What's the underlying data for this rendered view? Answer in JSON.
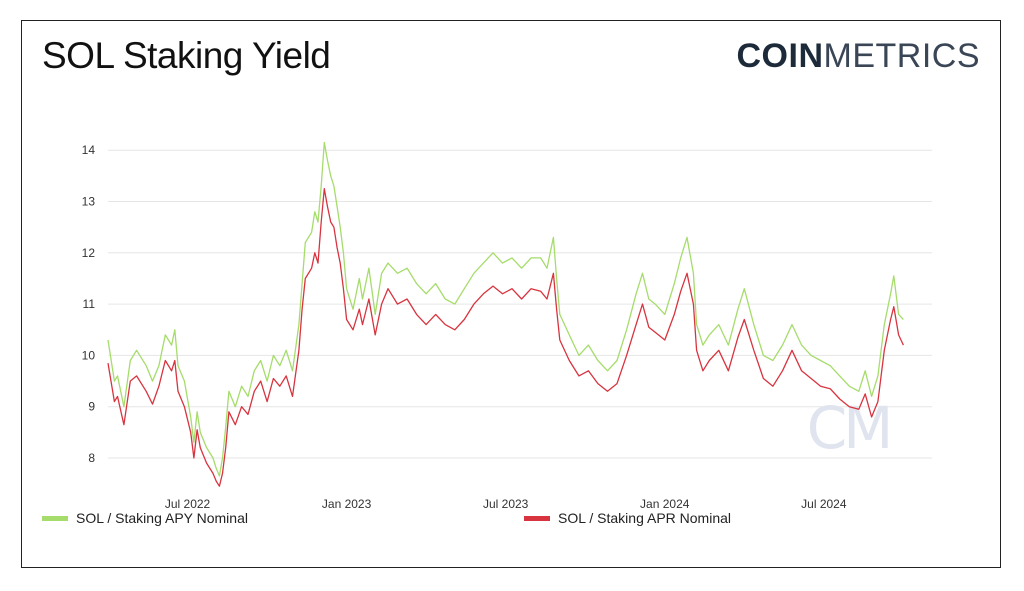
{
  "header": {
    "title": "SOL Staking Yield",
    "brand_bold": "COIN",
    "brand_light": "METRICS",
    "watermark": "CM"
  },
  "colors": {
    "apy": "#a6dc6b",
    "apr": "#d8343f",
    "grid": "#e6e6e6",
    "watermark": "#dfe4ee"
  },
  "chart_data": {
    "type": "line",
    "title": "SOL Staking Yield",
    "xlabel": "",
    "ylabel": "",
    "ylim": [
      7.5,
      14.2
    ],
    "yticks": [
      8,
      9,
      10,
      11,
      12,
      13,
      14
    ],
    "xlim": [
      2022.25,
      2024.84
    ],
    "xticks": [
      {
        "x": 2022.5,
        "label": "Jul 2022"
      },
      {
        "x": 2023.0,
        "label": "Jan 2023"
      },
      {
        "x": 2023.5,
        "label": "Jul 2023"
      },
      {
        "x": 2024.0,
        "label": "Jan 2024"
      },
      {
        "x": 2024.5,
        "label": "Jul 2024"
      }
    ],
    "legend_position": "bottom",
    "series": [
      {
        "name": "SOL / Staking APY Nominal",
        "color_key": "apy",
        "points": [
          [
            2022.25,
            10.3
          ],
          [
            2022.27,
            9.5
          ],
          [
            2022.28,
            9.6
          ],
          [
            2022.3,
            9.0
          ],
          [
            2022.32,
            9.9
          ],
          [
            2022.34,
            10.1
          ],
          [
            2022.37,
            9.8
          ],
          [
            2022.39,
            9.5
          ],
          [
            2022.41,
            9.8
          ],
          [
            2022.43,
            10.4
          ],
          [
            2022.45,
            10.2
          ],
          [
            2022.46,
            10.5
          ],
          [
            2022.47,
            9.8
          ],
          [
            2022.49,
            9.5
          ],
          [
            2022.51,
            8.8
          ],
          [
            2022.52,
            8.3
          ],
          [
            2022.53,
            8.9
          ],
          [
            2022.54,
            8.5
          ],
          [
            2022.56,
            8.2
          ],
          [
            2022.58,
            8.0
          ],
          [
            2022.59,
            7.8
          ],
          [
            2022.6,
            7.65
          ],
          [
            2022.61,
            8.0
          ],
          [
            2022.62,
            8.6
          ],
          [
            2022.63,
            9.3
          ],
          [
            2022.65,
            9.0
          ],
          [
            2022.67,
            9.4
          ],
          [
            2022.69,
            9.2
          ],
          [
            2022.71,
            9.7
          ],
          [
            2022.73,
            9.9
          ],
          [
            2022.75,
            9.5
          ],
          [
            2022.77,
            10.0
          ],
          [
            2022.79,
            9.8
          ],
          [
            2022.81,
            10.1
          ],
          [
            2022.83,
            9.7
          ],
          [
            2022.85,
            10.6
          ],
          [
            2022.86,
            11.4
          ],
          [
            2022.87,
            12.2
          ],
          [
            2022.89,
            12.4
          ],
          [
            2022.9,
            12.8
          ],
          [
            2022.91,
            12.6
          ],
          [
            2022.92,
            13.3
          ],
          [
            2022.93,
            14.15
          ],
          [
            2022.94,
            13.8
          ],
          [
            2022.95,
            13.5
          ],
          [
            2022.96,
            13.3
          ],
          [
            2022.97,
            12.9
          ],
          [
            2022.98,
            12.5
          ],
          [
            2022.99,
            12.0
          ],
          [
            2023.0,
            11.3
          ],
          [
            2023.02,
            10.9
          ],
          [
            2023.04,
            11.5
          ],
          [
            2023.05,
            11.1
          ],
          [
            2023.07,
            11.7
          ],
          [
            2023.09,
            10.8
          ],
          [
            2023.11,
            11.6
          ],
          [
            2023.13,
            11.8
          ],
          [
            2023.16,
            11.6
          ],
          [
            2023.19,
            11.7
          ],
          [
            2023.22,
            11.4
          ],
          [
            2023.25,
            11.2
          ],
          [
            2023.28,
            11.4
          ],
          [
            2023.31,
            11.1
          ],
          [
            2023.34,
            11.0
          ],
          [
            2023.37,
            11.3
          ],
          [
            2023.4,
            11.6
          ],
          [
            2023.43,
            11.8
          ],
          [
            2023.46,
            12.0
          ],
          [
            2023.49,
            11.8
          ],
          [
            2023.52,
            11.9
          ],
          [
            2023.55,
            11.7
          ],
          [
            2023.58,
            11.9
          ],
          [
            2023.61,
            11.9
          ],
          [
            2023.63,
            11.7
          ],
          [
            2023.65,
            12.3
          ],
          [
            2023.66,
            11.5
          ],
          [
            2023.67,
            10.8
          ],
          [
            2023.7,
            10.4
          ],
          [
            2023.73,
            10.0
          ],
          [
            2023.76,
            10.2
          ],
          [
            2023.79,
            9.9
          ],
          [
            2023.82,
            9.7
          ],
          [
            2023.85,
            9.9
          ],
          [
            2023.88,
            10.5
          ],
          [
            2023.91,
            11.2
          ],
          [
            2023.93,
            11.6
          ],
          [
            2023.95,
            11.1
          ],
          [
            2023.97,
            11.0
          ],
          [
            2024.0,
            10.8
          ],
          [
            2024.03,
            11.4
          ],
          [
            2024.05,
            11.9
          ],
          [
            2024.07,
            12.3
          ],
          [
            2024.09,
            11.6
          ],
          [
            2024.1,
            10.6
          ],
          [
            2024.12,
            10.2
          ],
          [
            2024.14,
            10.4
          ],
          [
            2024.17,
            10.6
          ],
          [
            2024.2,
            10.2
          ],
          [
            2024.23,
            10.9
          ],
          [
            2024.25,
            11.3
          ],
          [
            2024.28,
            10.6
          ],
          [
            2024.31,
            10.0
          ],
          [
            2024.34,
            9.9
          ],
          [
            2024.37,
            10.2
          ],
          [
            2024.4,
            10.6
          ],
          [
            2024.43,
            10.2
          ],
          [
            2024.46,
            10.0
          ],
          [
            2024.49,
            9.9
          ],
          [
            2024.52,
            9.8
          ],
          [
            2024.55,
            9.6
          ],
          [
            2024.58,
            9.4
          ],
          [
            2024.61,
            9.3
          ],
          [
            2024.63,
            9.7
          ],
          [
            2024.65,
            9.2
          ],
          [
            2024.67,
            9.6
          ],
          [
            2024.69,
            10.6
          ],
          [
            2024.71,
            11.2
          ],
          [
            2024.72,
            11.55
          ],
          [
            2024.735,
            10.8
          ],
          [
            2024.75,
            10.7
          ]
        ]
      },
      {
        "name": "SOL / Staking APR Nominal",
        "color_key": "apr",
        "points": [
          [
            2022.25,
            9.85
          ],
          [
            2022.27,
            9.1
          ],
          [
            2022.28,
            9.2
          ],
          [
            2022.3,
            8.65
          ],
          [
            2022.32,
            9.5
          ],
          [
            2022.34,
            9.6
          ],
          [
            2022.37,
            9.3
          ],
          [
            2022.39,
            9.05
          ],
          [
            2022.41,
            9.4
          ],
          [
            2022.43,
            9.9
          ],
          [
            2022.45,
            9.7
          ],
          [
            2022.46,
            9.9
          ],
          [
            2022.47,
            9.3
          ],
          [
            2022.49,
            9.0
          ],
          [
            2022.51,
            8.5
          ],
          [
            2022.52,
            8.0
          ],
          [
            2022.53,
            8.55
          ],
          [
            2022.54,
            8.2
          ],
          [
            2022.56,
            7.9
          ],
          [
            2022.58,
            7.7
          ],
          [
            2022.59,
            7.55
          ],
          [
            2022.6,
            7.45
          ],
          [
            2022.61,
            7.7
          ],
          [
            2022.62,
            8.2
          ],
          [
            2022.63,
            8.9
          ],
          [
            2022.65,
            8.65
          ],
          [
            2022.67,
            9.0
          ],
          [
            2022.69,
            8.85
          ],
          [
            2022.71,
            9.3
          ],
          [
            2022.73,
            9.5
          ],
          [
            2022.75,
            9.1
          ],
          [
            2022.77,
            9.55
          ],
          [
            2022.79,
            9.4
          ],
          [
            2022.81,
            9.6
          ],
          [
            2022.83,
            9.2
          ],
          [
            2022.85,
            10.1
          ],
          [
            2022.86,
            10.9
          ],
          [
            2022.87,
            11.5
          ],
          [
            2022.89,
            11.7
          ],
          [
            2022.9,
            12.0
          ],
          [
            2022.91,
            11.8
          ],
          [
            2022.92,
            12.6
          ],
          [
            2022.93,
            13.25
          ],
          [
            2022.94,
            12.9
          ],
          [
            2022.95,
            12.6
          ],
          [
            2022.96,
            12.5
          ],
          [
            2022.97,
            12.1
          ],
          [
            2022.98,
            11.8
          ],
          [
            2022.99,
            11.3
          ],
          [
            2023.0,
            10.7
          ],
          [
            2023.02,
            10.5
          ],
          [
            2023.04,
            10.9
          ],
          [
            2023.05,
            10.6
          ],
          [
            2023.07,
            11.1
          ],
          [
            2023.09,
            10.4
          ],
          [
            2023.11,
            11.0
          ],
          [
            2023.13,
            11.3
          ],
          [
            2023.16,
            11.0
          ],
          [
            2023.19,
            11.1
          ],
          [
            2023.22,
            10.8
          ],
          [
            2023.25,
            10.6
          ],
          [
            2023.28,
            10.8
          ],
          [
            2023.31,
            10.6
          ],
          [
            2023.34,
            10.5
          ],
          [
            2023.37,
            10.7
          ],
          [
            2023.4,
            11.0
          ],
          [
            2023.43,
            11.2
          ],
          [
            2023.46,
            11.35
          ],
          [
            2023.49,
            11.2
          ],
          [
            2023.52,
            11.3
          ],
          [
            2023.55,
            11.1
          ],
          [
            2023.58,
            11.3
          ],
          [
            2023.61,
            11.25
          ],
          [
            2023.63,
            11.1
          ],
          [
            2023.65,
            11.6
          ],
          [
            2023.66,
            10.9
          ],
          [
            2023.67,
            10.3
          ],
          [
            2023.7,
            9.9
          ],
          [
            2023.73,
            9.6
          ],
          [
            2023.76,
            9.7
          ],
          [
            2023.79,
            9.45
          ],
          [
            2023.82,
            9.3
          ],
          [
            2023.85,
            9.45
          ],
          [
            2023.88,
            10.0
          ],
          [
            2023.91,
            10.6
          ],
          [
            2023.93,
            11.0
          ],
          [
            2023.95,
            10.55
          ],
          [
            2023.97,
            10.45
          ],
          [
            2024.0,
            10.3
          ],
          [
            2024.03,
            10.8
          ],
          [
            2024.05,
            11.25
          ],
          [
            2024.07,
            11.6
          ],
          [
            2024.09,
            11.0
          ],
          [
            2024.1,
            10.1
          ],
          [
            2024.12,
            9.7
          ],
          [
            2024.14,
            9.9
          ],
          [
            2024.17,
            10.1
          ],
          [
            2024.2,
            9.7
          ],
          [
            2024.23,
            10.35
          ],
          [
            2024.25,
            10.7
          ],
          [
            2024.28,
            10.1
          ],
          [
            2024.31,
            9.55
          ],
          [
            2024.34,
            9.4
          ],
          [
            2024.37,
            9.7
          ],
          [
            2024.4,
            10.1
          ],
          [
            2024.43,
            9.7
          ],
          [
            2024.46,
            9.55
          ],
          [
            2024.49,
            9.4
          ],
          [
            2024.52,
            9.35
          ],
          [
            2024.55,
            9.15
          ],
          [
            2024.58,
            9.0
          ],
          [
            2024.61,
            8.95
          ],
          [
            2024.63,
            9.25
          ],
          [
            2024.65,
            8.8
          ],
          [
            2024.67,
            9.1
          ],
          [
            2024.69,
            10.1
          ],
          [
            2024.71,
            10.7
          ],
          [
            2024.72,
            10.95
          ],
          [
            2024.735,
            10.4
          ],
          [
            2024.75,
            10.2
          ]
        ]
      }
    ]
  }
}
